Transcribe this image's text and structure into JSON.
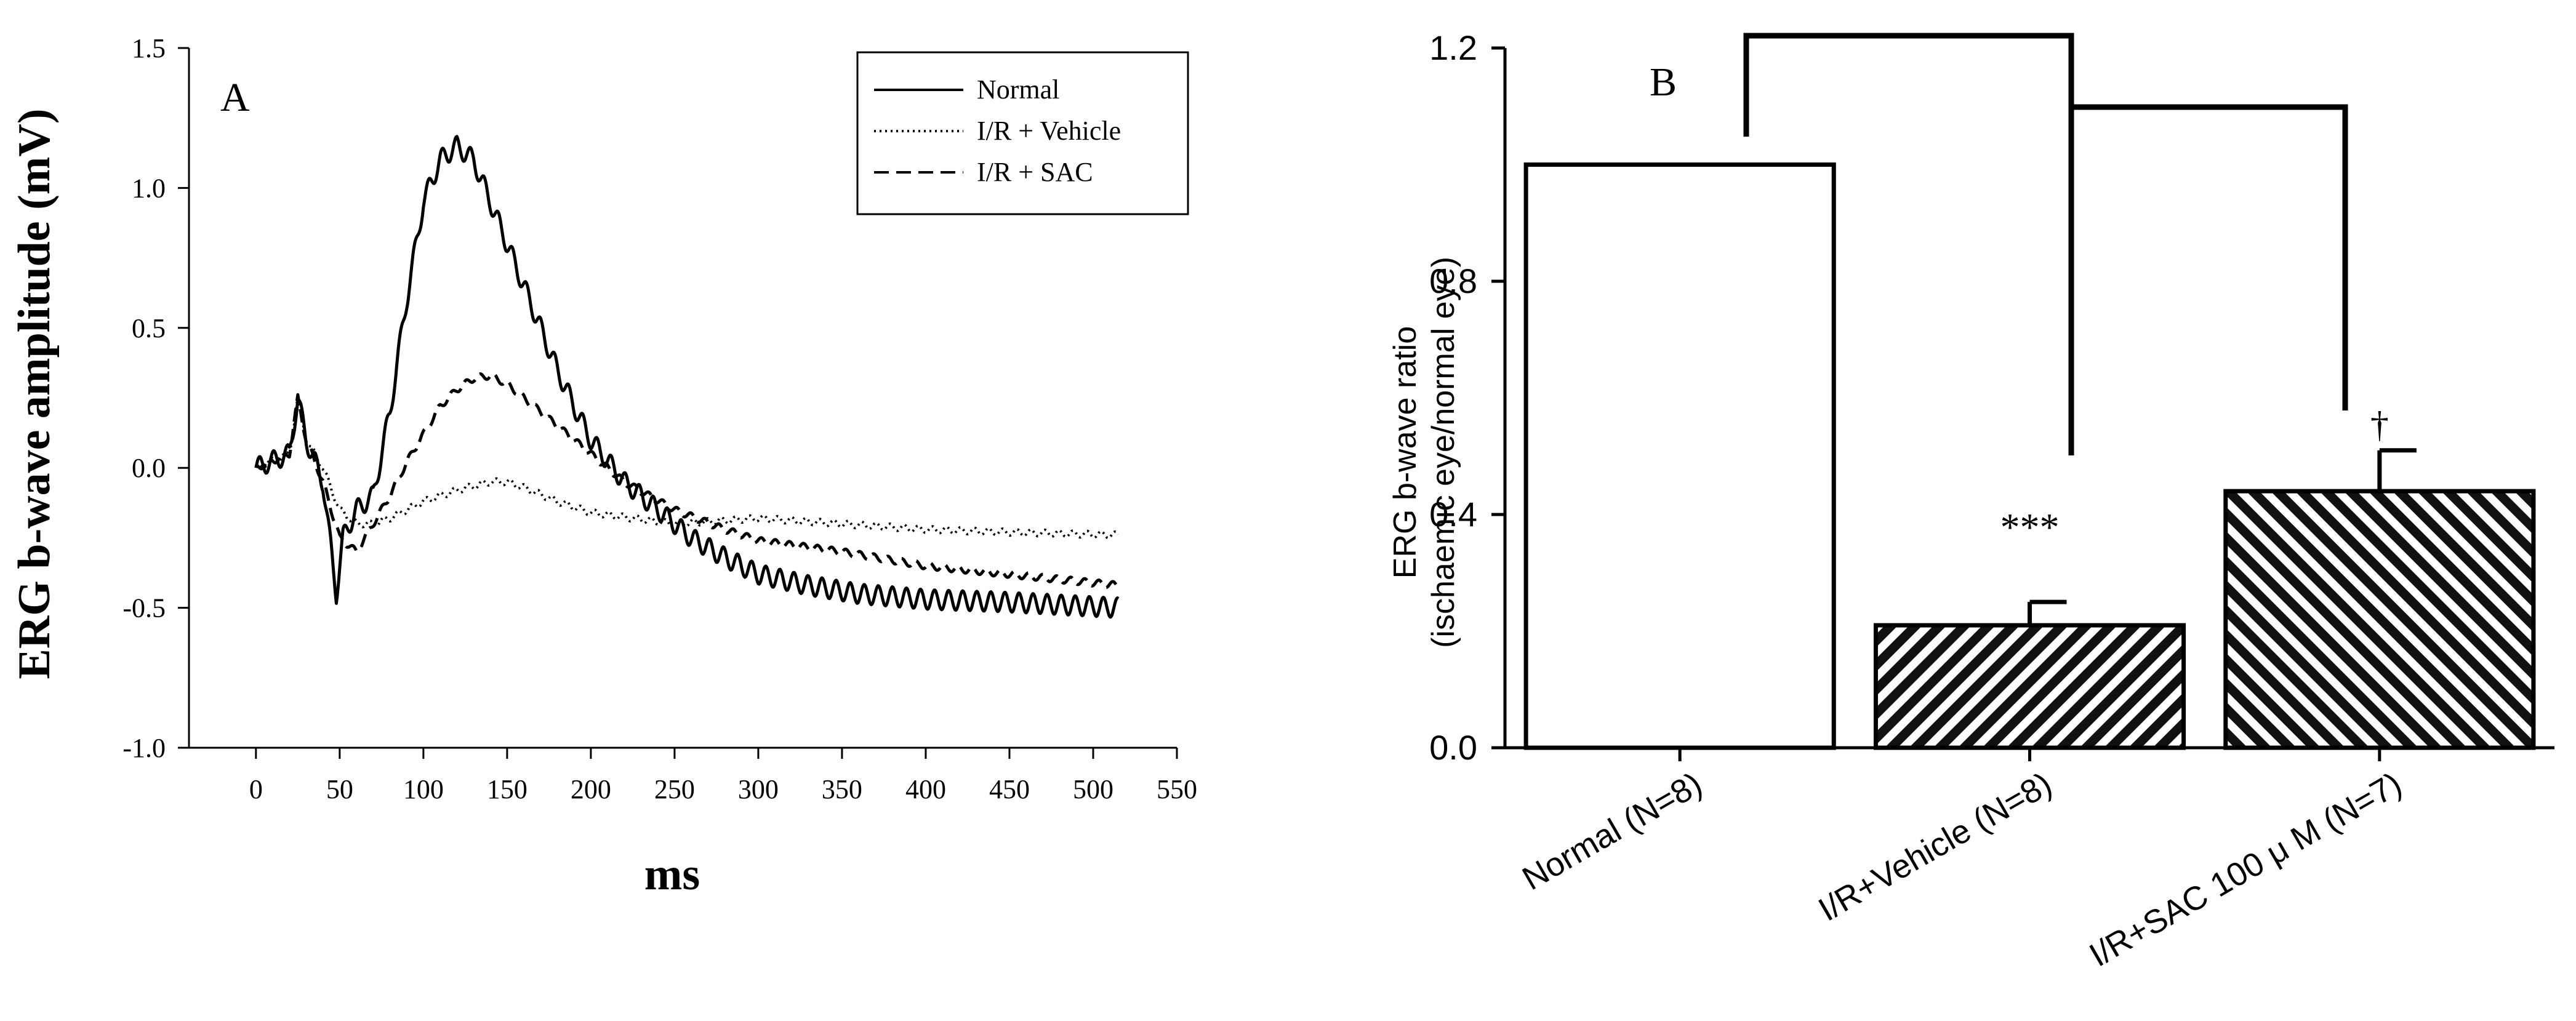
{
  "chart_data": [
    {
      "panel": "A",
      "type": "line",
      "xlabel": "ms",
      "ylabel": "ERG b-wave amplitude (mV)",
      "xlim": [
        -40,
        550
      ],
      "ylim": [
        -1.0,
        1.5
      ],
      "x_ticks": [
        "0",
        "50",
        "100",
        "150",
        "200",
        "250",
        "300",
        "350",
        "400",
        "450",
        "500",
        "550"
      ],
      "y_ticks": [
        "-1.0",
        "-0.5",
        "0.0",
        "0.5",
        "1.0",
        "1.5"
      ],
      "legend_position": "top-right",
      "series": [
        {
          "name": "Normal",
          "style": "solid",
          "x": [
            0,
            20,
            25,
            30,
            40,
            48,
            52,
            60,
            70,
            80,
            90,
            100,
            110,
            120,
            130,
            140,
            150,
            160,
            170,
            180,
            190,
            200,
            220,
            240,
            260,
            280,
            300,
            330,
            360,
            400,
            450,
            515
          ],
          "y": [
            0.0,
            0.05,
            0.25,
            0.1,
            -0.05,
            -0.45,
            -0.25,
            -0.15,
            -0.1,
            0.2,
            0.6,
            0.95,
            1.1,
            1.15,
            1.1,
            0.95,
            0.8,
            0.65,
            0.5,
            0.35,
            0.22,
            0.1,
            -0.05,
            -0.15,
            -0.25,
            -0.32,
            -0.38,
            -0.42,
            -0.45,
            -0.47,
            -0.48,
            -0.5
          ],
          "oscillation_amp": 0.035
        },
        {
          "name": "I/R + Vehicle",
          "style": "dotted",
          "x": [
            0,
            20,
            25,
            30,
            40,
            50,
            60,
            70,
            80,
            100,
            120,
            140,
            150,
            160,
            180,
            200,
            250,
            300,
            350,
            400,
            450,
            515
          ],
          "y": [
            0.0,
            0.05,
            0.25,
            0.1,
            0.0,
            -0.15,
            -0.2,
            -0.2,
            -0.18,
            -0.12,
            -0.08,
            -0.05,
            -0.05,
            -0.07,
            -0.12,
            -0.16,
            -0.2,
            -0.18,
            -0.2,
            -0.22,
            -0.23,
            -0.24
          ],
          "oscillation_amp": 0.012
        },
        {
          "name": "I/R + SAC",
          "style": "dashed",
          "x": [
            0,
            20,
            25,
            30,
            40,
            50,
            60,
            70,
            80,
            90,
            100,
            110,
            120,
            130,
            140,
            150,
            160,
            180,
            200,
            220,
            250,
            280,
            300,
            350,
            400,
            450,
            515
          ],
          "y": [
            0.0,
            0.05,
            0.25,
            0.1,
            -0.05,
            -0.25,
            -0.3,
            -0.2,
            -0.1,
            0.02,
            0.12,
            0.22,
            0.28,
            0.32,
            0.33,
            0.3,
            0.25,
            0.15,
            0.05,
            -0.05,
            -0.15,
            -0.22,
            -0.26,
            -0.3,
            -0.35,
            -0.38,
            -0.42
          ],
          "oscillation_amp": 0.012
        }
      ]
    },
    {
      "panel": "B",
      "type": "bar",
      "ylabel": "ERG b-wave ratio",
      "ylabel_sub": "(ischaemic eye/normal eye)",
      "ylim": [
        0.0,
        1.2
      ],
      "y_ticks": [
        "0.0",
        "0.4",
        "0.8",
        "1.2"
      ],
      "categories": [
        "Normal (N=8)",
        "I/R+Vehicle (N=8)",
        "I/R+SAC 100 μ M (N=7)"
      ],
      "values": [
        1.0,
        0.21,
        0.44
      ],
      "errors": [
        0.0,
        0.04,
        0.07
      ],
      "fills": [
        "none",
        "hatch-right",
        "hatch-left"
      ],
      "annotations": [
        "",
        "***",
        "†"
      ]
    }
  ],
  "panel_labels": {
    "a": "A",
    "b": "B"
  }
}
